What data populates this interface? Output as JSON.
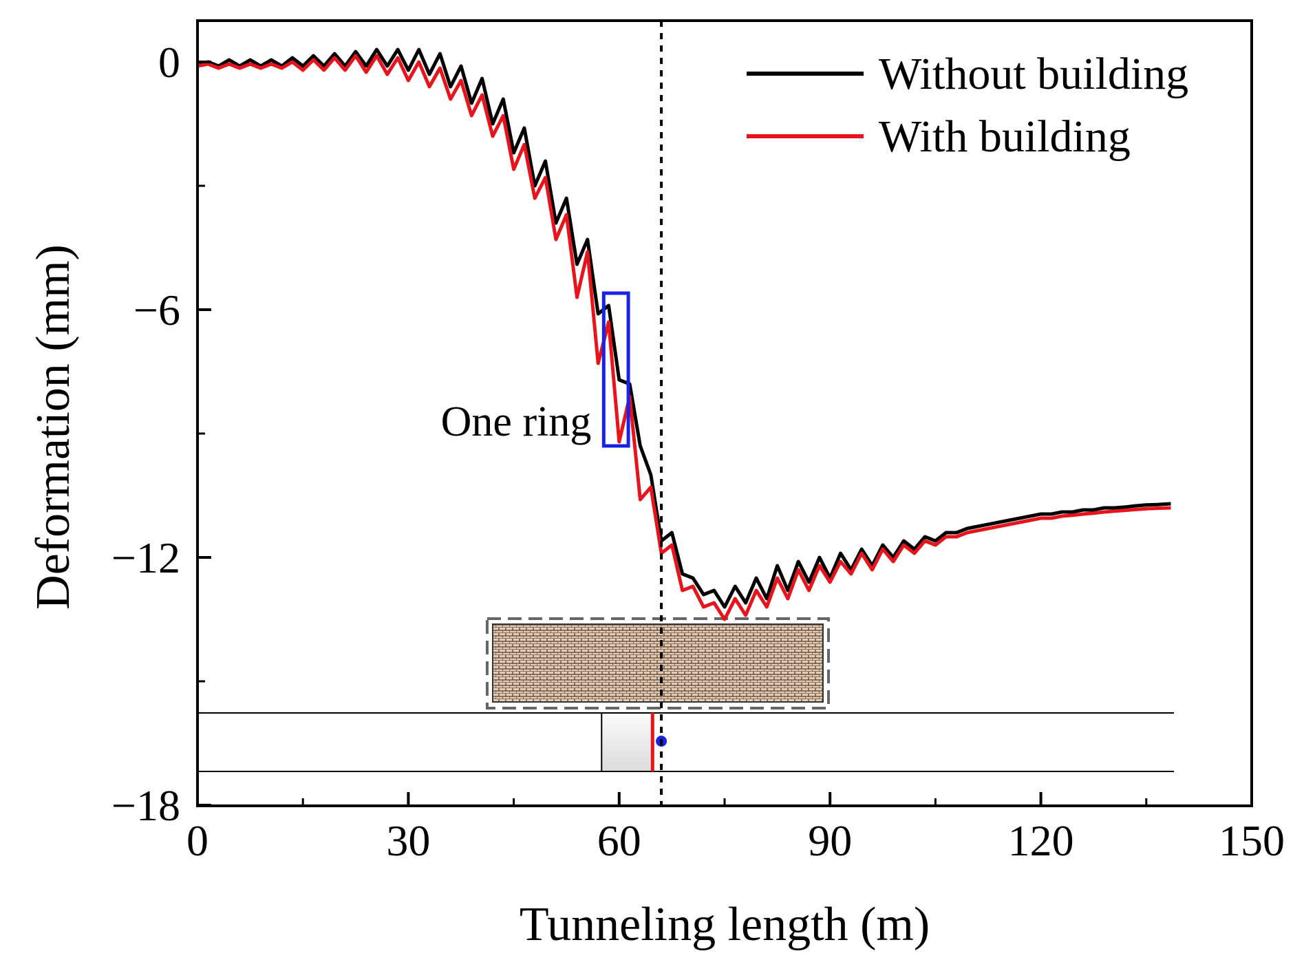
{
  "chart_data": {
    "type": "line",
    "title": "",
    "xlabel": "Tunneling length (m)",
    "ylabel": "Deformation (mm)",
    "xlim": [
      0,
      150
    ],
    "ylim": [
      -18,
      1.3
    ],
    "xticks": [
      0,
      30,
      60,
      90,
      120,
      150
    ],
    "xtick_labels": [
      "0",
      "30",
      "60",
      "90",
      "120",
      "150"
    ],
    "yticks": [
      0,
      -6,
      -12,
      -18
    ],
    "ytick_labels": [
      "0",
      "−6",
      "−12",
      "−18"
    ],
    "legend_position": "top-right",
    "series": [
      {
        "name": "Without building",
        "color": "#000000",
        "x": [
          0,
          1.5,
          3,
          4.5,
          6,
          7.5,
          9,
          10.5,
          12,
          13.5,
          15,
          16.5,
          18,
          19.5,
          21,
          22.5,
          24,
          25.5,
          27,
          28.5,
          30,
          31.5,
          33,
          34.5,
          36,
          37.5,
          39,
          40.5,
          42,
          43.5,
          45,
          46.5,
          48,
          49.5,
          51,
          52.5,
          54,
          55.5,
          57,
          58.5,
          60,
          61.5,
          63,
          64.5,
          66,
          67.5,
          69,
          70.5,
          72,
          73.5,
          75,
          76.5,
          78,
          79.5,
          81,
          82.5,
          84,
          85.5,
          87,
          88.5,
          90,
          91.5,
          93,
          94.5,
          96,
          97.5,
          99,
          100.5,
          102,
          103.5,
          105,
          106.5,
          108,
          109.5,
          111,
          112.5,
          114,
          115.5,
          117,
          118.5,
          120,
          121.5,
          123,
          124.5,
          126,
          127.5,
          129,
          130.5,
          132,
          133.5,
          135,
          136.5,
          138.5
        ],
        "y": [
          -0.1,
          0,
          -0.1,
          0.05,
          -0.1,
          0.05,
          -0.1,
          0.05,
          -0.1,
          0.1,
          -0.1,
          0.15,
          -0.1,
          0.2,
          -0.1,
          0.25,
          -0.1,
          0.3,
          -0.1,
          0.3,
          -0.2,
          0.3,
          -0.3,
          0.2,
          -0.6,
          -0.1,
          -1.0,
          -0.4,
          -1.5,
          -0.9,
          -2.2,
          -1.6,
          -3.0,
          -2.4,
          -3.9,
          -3.3,
          -4.9,
          -4.3,
          -6.1,
          -5.9,
          -7.7,
          -7.8,
          -9.3,
          -10.0,
          -11.6,
          -11.4,
          -12.4,
          -12.5,
          -12.9,
          -12.8,
          -13.2,
          -12.7,
          -13.1,
          -12.5,
          -13.0,
          -12.2,
          -12.8,
          -12.1,
          -12.6,
          -12.0,
          -12.5,
          -11.9,
          -12.3,
          -11.8,
          -12.2,
          -11.7,
          -12.0,
          -11.6,
          -11.8,
          -11.5,
          -11.6,
          -11.4,
          -11.4,
          -11.3,
          -11.25,
          -11.2,
          -11.15,
          -11.1,
          -11.05,
          -11.0,
          -10.95,
          -10.95,
          -10.9,
          -10.9,
          -10.85,
          -10.85,
          -10.8,
          -10.8,
          -10.78,
          -10.75,
          -10.73,
          -10.72,
          -10.7
        ]
      },
      {
        "name": "With building",
        "color": "#e8141c",
        "x": [
          0,
          1.5,
          3,
          4.5,
          6,
          7.5,
          9,
          10.5,
          12,
          13.5,
          15,
          16.5,
          18,
          19.5,
          21,
          22.5,
          24,
          25.5,
          27,
          28.5,
          30,
          31.5,
          33,
          34.5,
          36,
          37.5,
          39,
          40.5,
          42,
          43.5,
          45,
          46.5,
          48,
          49.5,
          51,
          52.5,
          54,
          55.5,
          57,
          58.5,
          60,
          61.5,
          63,
          64.5,
          66,
          67.5,
          69,
          70.5,
          72,
          73.5,
          75,
          76.5,
          78,
          79.5,
          81,
          82.5,
          84,
          85.5,
          87,
          88.5,
          90,
          91.5,
          93,
          94.5,
          96,
          97.5,
          99,
          100.5,
          102,
          103.5,
          105,
          106.5,
          108,
          109.5,
          111,
          112.5,
          114,
          115.5,
          117,
          118.5,
          120,
          121.5,
          123,
          124.5,
          126,
          127.5,
          129,
          130.5,
          132,
          133.5,
          135,
          136.5,
          138.5
        ],
        "y": [
          -0.1,
          -0.05,
          -0.15,
          -0.05,
          -0.15,
          -0.05,
          -0.15,
          -0.05,
          -0.15,
          0.0,
          -0.2,
          0.05,
          -0.2,
          0.1,
          -0.2,
          0.15,
          -0.25,
          0.15,
          -0.3,
          0.1,
          -0.45,
          0.0,
          -0.6,
          -0.15,
          -0.9,
          -0.45,
          -1.3,
          -0.8,
          -1.8,
          -1.3,
          -2.6,
          -2.0,
          -3.3,
          -2.8,
          -4.3,
          -3.7,
          -5.7,
          -4.6,
          -7.3,
          -6.3,
          -9.2,
          -8.1,
          -10.6,
          -10.3,
          -11.9,
          -11.7,
          -12.8,
          -12.7,
          -13.2,
          -13.1,
          -13.5,
          -13.0,
          -13.4,
          -12.8,
          -13.2,
          -12.5,
          -13.0,
          -12.3,
          -12.8,
          -12.2,
          -12.6,
          -12.1,
          -12.4,
          -11.9,
          -12.3,
          -11.8,
          -12.1,
          -11.7,
          -11.9,
          -11.6,
          -11.7,
          -11.5,
          -11.5,
          -11.4,
          -11.35,
          -11.3,
          -11.25,
          -11.2,
          -11.15,
          -11.1,
          -11.05,
          -11.05,
          -11.0,
          -10.98,
          -10.95,
          -10.93,
          -10.9,
          -10.88,
          -10.86,
          -10.84,
          -10.82,
          -10.81,
          -10.8
        ]
      }
    ],
    "annotations": {
      "face_position_x": 66,
      "one_ring_label": "One ring",
      "one_ring_box_x": [
        57.8,
        61.3
      ],
      "one_ring_box_y": [
        -5.6,
        -9.3
      ],
      "building_extent_x": [
        42,
        89
      ],
      "tunnel_shield_x": [
        57.5,
        64.7
      ]
    }
  }
}
